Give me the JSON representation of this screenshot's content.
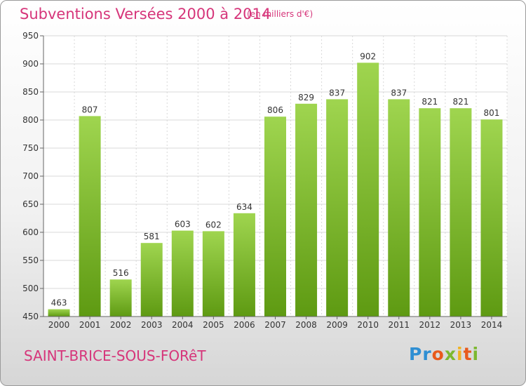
{
  "title": "Subventions Versées 2000 à 2014",
  "subtitle": "(en milliers d'€)",
  "commune": "SAINT-BRICE-SOUS-FORêT",
  "logo": {
    "part1": "Pr",
    "part2": "o",
    "part3": "x",
    "part4": "i",
    "part5": "t",
    "part6": "i"
  },
  "colors": {
    "bar_light": "#9fd54f",
    "bar_dark": "#5e9a12",
    "title": "#d6357a",
    "grid": "#d8d8d8"
  },
  "chart_data": {
    "type": "bar",
    "title": "Subventions Versées 2000 à 2014",
    "subtitle": "(en milliers d'€)",
    "categories": [
      "2000",
      "2001",
      "2002",
      "2003",
      "2004",
      "2005",
      "2006",
      "2007",
      "2008",
      "2009",
      "2010",
      "2011",
      "2012",
      "2013",
      "2014"
    ],
    "values": [
      463,
      807,
      516,
      581,
      603,
      602,
      634,
      806,
      829,
      837,
      902,
      837,
      821,
      821,
      801
    ],
    "ylim": [
      450,
      950
    ],
    "yticks": [
      450,
      500,
      550,
      600,
      650,
      700,
      750,
      800,
      850,
      900,
      950
    ],
    "grid": true,
    "xlabel": "",
    "ylabel": ""
  }
}
